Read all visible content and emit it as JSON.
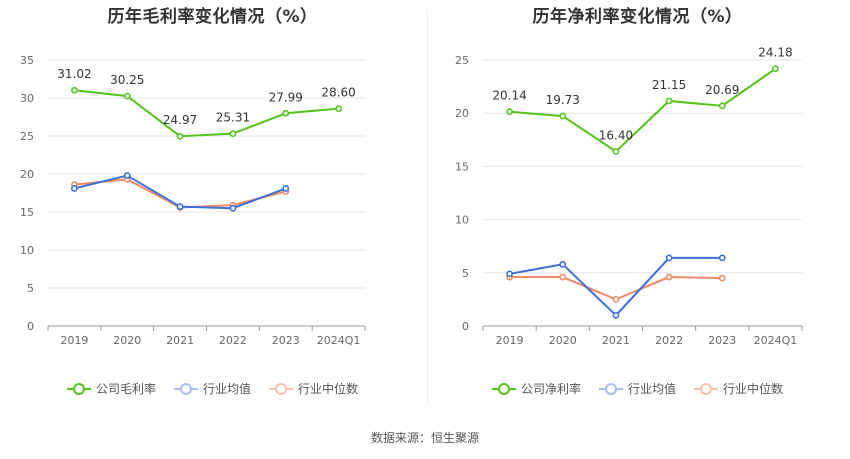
{
  "source_text": "数据来源：恒生聚源",
  "colors": {
    "company": "#52c41a",
    "industry_avg": "#3b70d8",
    "industry_median": "#f08a64"
  },
  "chart_data": [
    {
      "type": "line",
      "title": "历年毛利率变化情况（%）",
      "categories": [
        "2019",
        "2020",
        "2021",
        "2022",
        "2023",
        "2024Q1"
      ],
      "ylim": [
        0,
        35
      ],
      "yticks": [
        0,
        5,
        10,
        15,
        20,
        25,
        30,
        35
      ],
      "grid": true,
      "legend_position": "bottom",
      "series": [
        {
          "name": "公司毛利率",
          "values": [
            31.02,
            30.25,
            24.97,
            25.31,
            27.99,
            28.6
          ],
          "labels": [
            "31.02",
            "30.25",
            "24.97",
            "25.31",
            "27.99",
            "28.60"
          ]
        },
        {
          "name": "行业均值",
          "values": [
            18.1,
            19.8,
            15.7,
            15.5,
            18.1,
            null
          ]
        },
        {
          "name": "行业中位数",
          "values": [
            18.6,
            19.3,
            15.6,
            15.9,
            17.7,
            null
          ]
        }
      ]
    },
    {
      "type": "line",
      "title": "历年净利率变化情况（%）",
      "categories": [
        "2019",
        "2020",
        "2021",
        "2022",
        "2023",
        "2024Q1"
      ],
      "ylim": [
        0,
        25
      ],
      "yticks": [
        0,
        5,
        10,
        15,
        20,
        25
      ],
      "grid": true,
      "legend_position": "bottom",
      "series": [
        {
          "name": "公司净利率",
          "values": [
            20.14,
            19.73,
            16.4,
            21.15,
            20.69,
            24.18
          ],
          "labels": [
            "20.14",
            "19.73",
            "16.40",
            "21.15",
            "20.69",
            "24.18"
          ]
        },
        {
          "name": "行业均值",
          "values": [
            4.9,
            5.8,
            1.0,
            6.4,
            6.4,
            null
          ]
        },
        {
          "name": "行业中位数",
          "values": [
            4.6,
            4.6,
            2.5,
            4.6,
            4.5,
            null
          ]
        }
      ]
    }
  ]
}
